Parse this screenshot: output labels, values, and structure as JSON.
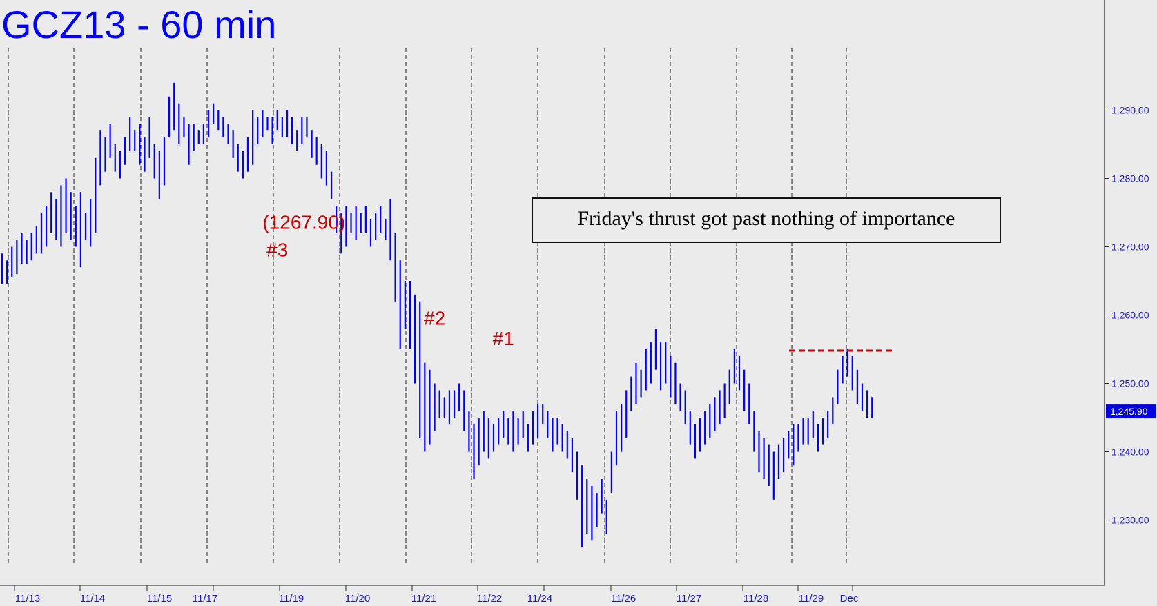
{
  "chart_data": {
    "type": "bar",
    "title": "GCZ13 - 60 min",
    "xlabel": "",
    "ylabel": "",
    "ylim": [
      1220,
      1303
    ],
    "y_ticks": [
      {
        "value": 1230,
        "label": "1,230.00"
      },
      {
        "value": 1240,
        "label": "1,240.00"
      },
      {
        "value": 1250,
        "label": "1,250.00"
      },
      {
        "value": 1260,
        "label": "1,260.00"
      },
      {
        "value": 1270,
        "label": "1,270.00"
      },
      {
        "value": 1280,
        "label": "1,280.00"
      },
      {
        "value": 1290,
        "label": "1,290.00"
      }
    ],
    "last_price": {
      "value": 1245.9,
      "label": "1,245.90"
    },
    "date_labels": [
      "11/13",
      "11/14",
      "11/15",
      "11/17",
      "11/19",
      "11/20",
      "11/21",
      "11/22",
      "11/24",
      "11/26",
      "11/27",
      "11/28",
      "11/29",
      "Dec"
    ],
    "grid": "vertical-dashed",
    "colors": {
      "bars": "#0000ff",
      "annotations": "#cc0000",
      "axis": "#1a1acc",
      "background": "#ebebeb"
    },
    "annotations": [
      {
        "text": "(1267.90)",
        "bar": 53,
        "price": 1272
      },
      {
        "text": "#3",
        "bar": 56,
        "price": 1268
      },
      {
        "text": "#2",
        "bar": 88,
        "price": 1258
      },
      {
        "text": "#1",
        "bar": 102,
        "price": 1255
      }
    ],
    "callout": "Friday's thrust got past nothing of importance",
    "resistance_line": {
      "price": 1254.8,
      "from_bar": 116,
      "to_bar": 131
    },
    "bars": [
      [
        1264.5,
        1269
      ],
      [
        1264.5,
        1268
      ],
      [
        1265.5,
        1270
      ],
      [
        1266,
        1271
      ],
      [
        1267.5,
        1272
      ],
      [
        1267.5,
        1271
      ],
      [
        1268,
        1272
      ],
      [
        1269,
        1273
      ],
      [
        1269,
        1275
      ],
      [
        1270,
        1276
      ],
      [
        1272,
        1278
      ],
      [
        1271,
        1277
      ],
      [
        1270,
        1279
      ],
      [
        1272,
        1280
      ],
      [
        1271,
        1278
      ],
      [
        1270,
        1276
      ],
      [
        1267,
        1278
      ],
      [
        1271,
        1275
      ],
      [
        1270,
        1277
      ],
      [
        1272,
        1283
      ],
      [
        1279,
        1287
      ],
      [
        1281,
        1286
      ],
      [
        1283,
        1288
      ],
      [
        1281,
        1285
      ],
      [
        1280,
        1284
      ],
      [
        1282,
        1286
      ],
      [
        1284,
        1289
      ],
      [
        1284,
        1287
      ],
      [
        1282,
        1288
      ],
      [
        1281,
        1286
      ],
      [
        1283,
        1289
      ],
      [
        1280,
        1285
      ],
      [
        1277,
        1284
      ],
      [
        1279,
        1286
      ],
      [
        1286,
        1292
      ],
      [
        1287,
        1294
      ],
      [
        1285,
        1291
      ],
      [
        1286,
        1289
      ],
      [
        1282,
        1288
      ],
      [
        1284,
        1288
      ],
      [
        1285,
        1287
      ],
      [
        1285,
        1288
      ],
      [
        1286,
        1290
      ],
      [
        1288,
        1291
      ],
      [
        1287,
        1290
      ],
      [
        1286,
        1289
      ],
      [
        1285,
        1288
      ],
      [
        1283,
        1287
      ],
      [
        1281,
        1285
      ],
      [
        1280,
        1284
      ],
      [
        1281,
        1286
      ],
      [
        1282,
        1290
      ],
      [
        1285,
        1289
      ],
      [
        1286,
        1290
      ],
      [
        1287,
        1289
      ],
      [
        1285,
        1289
      ],
      [
        1287,
        1290
      ],
      [
        1286,
        1289
      ],
      [
        1286,
        1290
      ],
      [
        1285,
        1289
      ],
      [
        1284,
        1287
      ],
      [
        1285,
        1289
      ],
      [
        1286,
        1289
      ],
      [
        1283,
        1287
      ],
      [
        1282,
        1286
      ],
      [
        1280,
        1285
      ],
      [
        1279,
        1284
      ],
      [
        1277,
        1281
      ],
      [
        1272,
        1276
      ],
      [
        1269,
        1275
      ],
      [
        1270,
        1276
      ],
      [
        1272,
        1275
      ],
      [
        1271,
        1276
      ],
      [
        1272,
        1275
      ],
      [
        1272,
        1276
      ],
      [
        1270,
        1274
      ],
      [
        1271,
        1275
      ],
      [
        1272,
        1276
      ],
      [
        1271,
        1274
      ],
      [
        1268,
        1277
      ],
      [
        1262,
        1272
      ],
      [
        1255,
        1268
      ],
      [
        1258,
        1265
      ],
      [
        1255,
        1265
      ],
      [
        1250,
        1263
      ],
      [
        1242,
        1262
      ],
      [
        1240,
        1253
      ],
      [
        1241,
        1252
      ],
      [
        1243,
        1250
      ],
      [
        1245,
        1249
      ],
      [
        1245,
        1248
      ],
      [
        1244,
        1249
      ],
      [
        1245,
        1249
      ],
      [
        1246,
        1250
      ],
      [
        1243,
        1249
      ],
      [
        1240,
        1246
      ],
      [
        1236,
        1244
      ],
      [
        1238,
        1245
      ],
      [
        1240,
        1246
      ],
      [
        1239,
        1245
      ],
      [
        1240,
        1244
      ],
      [
        1241,
        1245
      ],
      [
        1242,
        1246
      ],
      [
        1241,
        1245
      ],
      [
        1240,
        1246
      ],
      [
        1241,
        1245
      ],
      [
        1242,
        1246
      ],
      [
        1240,
        1244
      ],
      [
        1241,
        1246
      ],
      [
        1242,
        1247
      ],
      [
        1244,
        1247
      ],
      [
        1242,
        1246
      ],
      [
        1240,
        1245
      ],
      [
        1241,
        1245
      ],
      [
        1240,
        1244
      ],
      [
        1239,
        1243
      ],
      [
        1237,
        1242
      ],
      [
        1233,
        1240
      ],
      [
        1226,
        1238
      ],
      [
        1228,
        1236
      ],
      [
        1227,
        1235
      ],
      [
        1229,
        1234
      ],
      [
        1231,
        1236
      ],
      [
        1228,
        1233
      ],
      [
        1234,
        1240
      ],
      [
        1238,
        1246
      ],
      [
        1240,
        1247
      ],
      [
        1242,
        1249
      ],
      [
        1246,
        1251
      ],
      [
        1247,
        1253
      ],
      [
        1248,
        1252
      ],
      [
        1249,
        1255
      ],
      [
        1250,
        1256
      ],
      [
        1252,
        1258
      ],
      [
        1249,
        1256
      ],
      [
        1250,
        1256
      ],
      [
        1248,
        1254
      ],
      [
        1247,
        1253
      ],
      [
        1246,
        1250
      ],
      [
        1244,
        1249
      ],
      [
        1241,
        1246
      ],
      [
        1239,
        1244
      ],
      [
        1240,
        1245
      ],
      [
        1241,
        1246
      ],
      [
        1242,
        1247
      ],
      [
        1243,
        1248
      ],
      [
        1244,
        1249
      ],
      [
        1245,
        1250
      ],
      [
        1247,
        1252
      ],
      [
        1250,
        1255
      ],
      [
        1249,
        1254
      ],
      [
        1246,
        1252
      ],
      [
        1244,
        1250
      ],
      [
        1240,
        1246
      ],
      [
        1237,
        1243
      ],
      [
        1236,
        1242
      ],
      [
        1235,
        1241
      ],
      [
        1233,
        1240
      ],
      [
        1236,
        1241
      ],
      [
        1237,
        1242
      ],
      [
        1239,
        1243
      ],
      [
        1238,
        1244
      ],
      [
        1240,
        1244
      ],
      [
        1241,
        1245
      ],
      [
        1241,
        1245
      ],
      [
        1242,
        1246
      ],
      [
        1240,
        1244
      ],
      [
        1241,
        1245
      ],
      [
        1242,
        1246
      ],
      [
        1244,
        1248
      ],
      [
        1247,
        1252
      ],
      [
        1250,
        1254
      ],
      [
        1251,
        1255
      ],
      [
        1249,
        1254
      ],
      [
        1247,
        1252
      ],
      [
        1246,
        1250
      ],
      [
        1245,
        1249
      ],
      [
        1245,
        1248
      ]
    ]
  }
}
